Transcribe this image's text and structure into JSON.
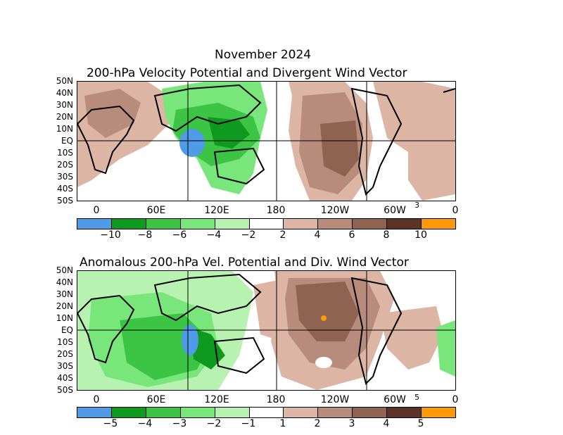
{
  "header": {
    "title": "November 2024",
    "panel1_title": "200-hPa Velocity Potential and Divergent Wind Vector",
    "panel2_title": "Anomalous 200-hPa Vel. Potential and Div. Wind Vector"
  },
  "lat_labels": [
    "50N",
    "40N",
    "30N",
    "20N",
    "10N",
    "EQ",
    "10S",
    "20S",
    "30S",
    "40S",
    "50S"
  ],
  "lon_labels": [
    "0",
    "60E",
    "120E",
    "180",
    "120W",
    "60W",
    "0"
  ],
  "panel1": {
    "ref_vector": "3",
    "colorbar_labels": [
      "−10",
      "−8",
      "−6",
      "−4",
      "−2",
      "2",
      "4",
      "6",
      "8",
      "10"
    ],
    "colorbar_colors": [
      "#4f9be8",
      "#0e9a1e",
      "#3cc544",
      "#78e67a",
      "#b8f2b0",
      "#ffffff",
      "#dcb5a5",
      "#b88c7c",
      "#8e6352",
      "#5b3427",
      "#fb9a06"
    ]
  },
  "panel2": {
    "ref_vector": "5",
    "colorbar_labels": [
      "−5",
      "−4",
      "−3",
      "−2",
      "−1",
      "1",
      "2",
      "3",
      "4",
      "5"
    ],
    "colorbar_colors": [
      "#4f9be8",
      "#0e9a1e",
      "#3cc544",
      "#78e67a",
      "#b8f2b0",
      "#ffffff",
      "#dcb5a5",
      "#b88c7c",
      "#8e6352",
      "#5b3427",
      "#fb9a06"
    ]
  }
}
